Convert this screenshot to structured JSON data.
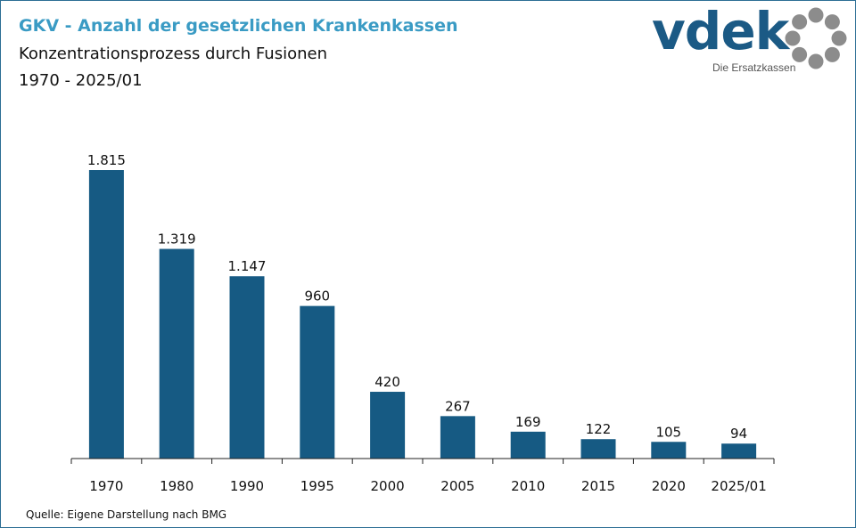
{
  "title": "GKV - Anzahl der gesetzlichen Krankenkassen",
  "subtitle": "Konzentrationsprozess durch Fusionen",
  "period": "1970 - 2025/01",
  "source": "Quelle: Eigene Darstellung nach BMG",
  "logo": {
    "word": "vdek",
    "tagline": "Die Ersatzkassen",
    "icon": "dotted-ring-icon"
  },
  "colors": {
    "bar": "#165a83",
    "title": "#3a9bc4",
    "frame": "#2c6e94",
    "logo": "#1b5a85",
    "ring": "#8c8c8c"
  },
  "chart_data": {
    "type": "bar",
    "categories": [
      "1970",
      "1980",
      "1990",
      "1995",
      "2000",
      "2005",
      "2010",
      "2015",
      "2020",
      "2025/01"
    ],
    "values": [
      1815,
      1319,
      1147,
      960,
      420,
      267,
      169,
      122,
      105,
      94
    ],
    "value_labels": [
      "1.815",
      "1.319",
      "1.147",
      "960",
      "420",
      "267",
      "169",
      "122",
      "105",
      "94"
    ],
    "ylim": [
      0,
      1815
    ],
    "grid": false,
    "legend": "none"
  }
}
